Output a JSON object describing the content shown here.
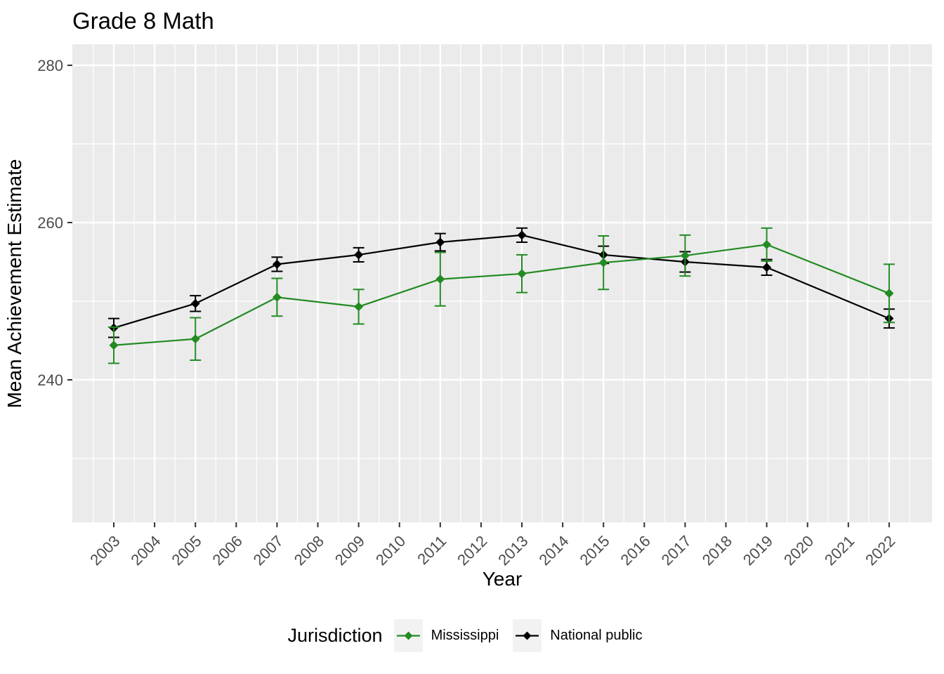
{
  "title": "Grade 8 Math",
  "axes": {
    "x_label": "Year",
    "y_label": "Mean Achievement Estimate",
    "y_ticks": [
      240,
      260,
      280
    ],
    "y_minor_ticks": [
      230,
      250,
      270
    ],
    "x_ticks": [
      2003,
      2004,
      2005,
      2006,
      2007,
      2008,
      2009,
      2010,
      2011,
      2012,
      2013,
      2014,
      2015,
      2016,
      2017,
      2018,
      2019,
      2020,
      2021,
      2022
    ]
  },
  "legend": {
    "title": "Jurisdiction",
    "entries": [
      {
        "label": "Mississippi",
        "color": "#228B22"
      },
      {
        "label": "National public",
        "color": "#000000"
      }
    ]
  },
  "colors": {
    "panel_background": "#EBEBEB",
    "gridline": "#FFFFFF",
    "tick_text": "#4D4D4D",
    "tick_mark": "#333333",
    "legend_key_background": "#F2F2F2",
    "mississippi_green": "#228B22",
    "national_black": "#000000"
  },
  "chart_data": {
    "type": "line",
    "title": "Grade 8 Math",
    "xlabel": "Year",
    "ylabel": "Mean Achievement Estimate",
    "x": [
      2003,
      2005,
      2007,
      2009,
      2011,
      2013,
      2015,
      2017,
      2019,
      2022
    ],
    "x_axis_tick_labels": [
      2003,
      2004,
      2005,
      2006,
      2007,
      2008,
      2009,
      2010,
      2011,
      2012,
      2013,
      2014,
      2015,
      2016,
      2017,
      2018,
      2019,
      2020,
      2021,
      2022
    ],
    "y_axis_tick_labels": [
      240,
      260,
      280
    ],
    "ylim": [
      222,
      283
    ],
    "grid": "on",
    "legend_title": "Jurisdiction",
    "legend_position": "bottom",
    "error_bars": true,
    "marker": "diamond",
    "series": [
      {
        "name": "Mississippi",
        "color": "#228B22",
        "values": [
          244.4,
          245.2,
          250.5,
          249.3,
          252.8,
          253.5,
          254.9,
          255.8,
          257.2,
          251.0
        ],
        "stderr": [
          2.3,
          2.7,
          2.4,
          2.2,
          3.4,
          2.4,
          3.4,
          2.6,
          2.1,
          3.7
        ]
      },
      {
        "name": "National public",
        "color": "#000000",
        "values": [
          246.6,
          249.7,
          254.7,
          255.9,
          257.5,
          258.4,
          255.9,
          255.0,
          254.3,
          247.8
        ],
        "stderr": [
          1.2,
          1.0,
          0.9,
          0.9,
          1.1,
          0.9,
          1.1,
          1.3,
          1.0,
          1.2
        ]
      }
    ]
  }
}
